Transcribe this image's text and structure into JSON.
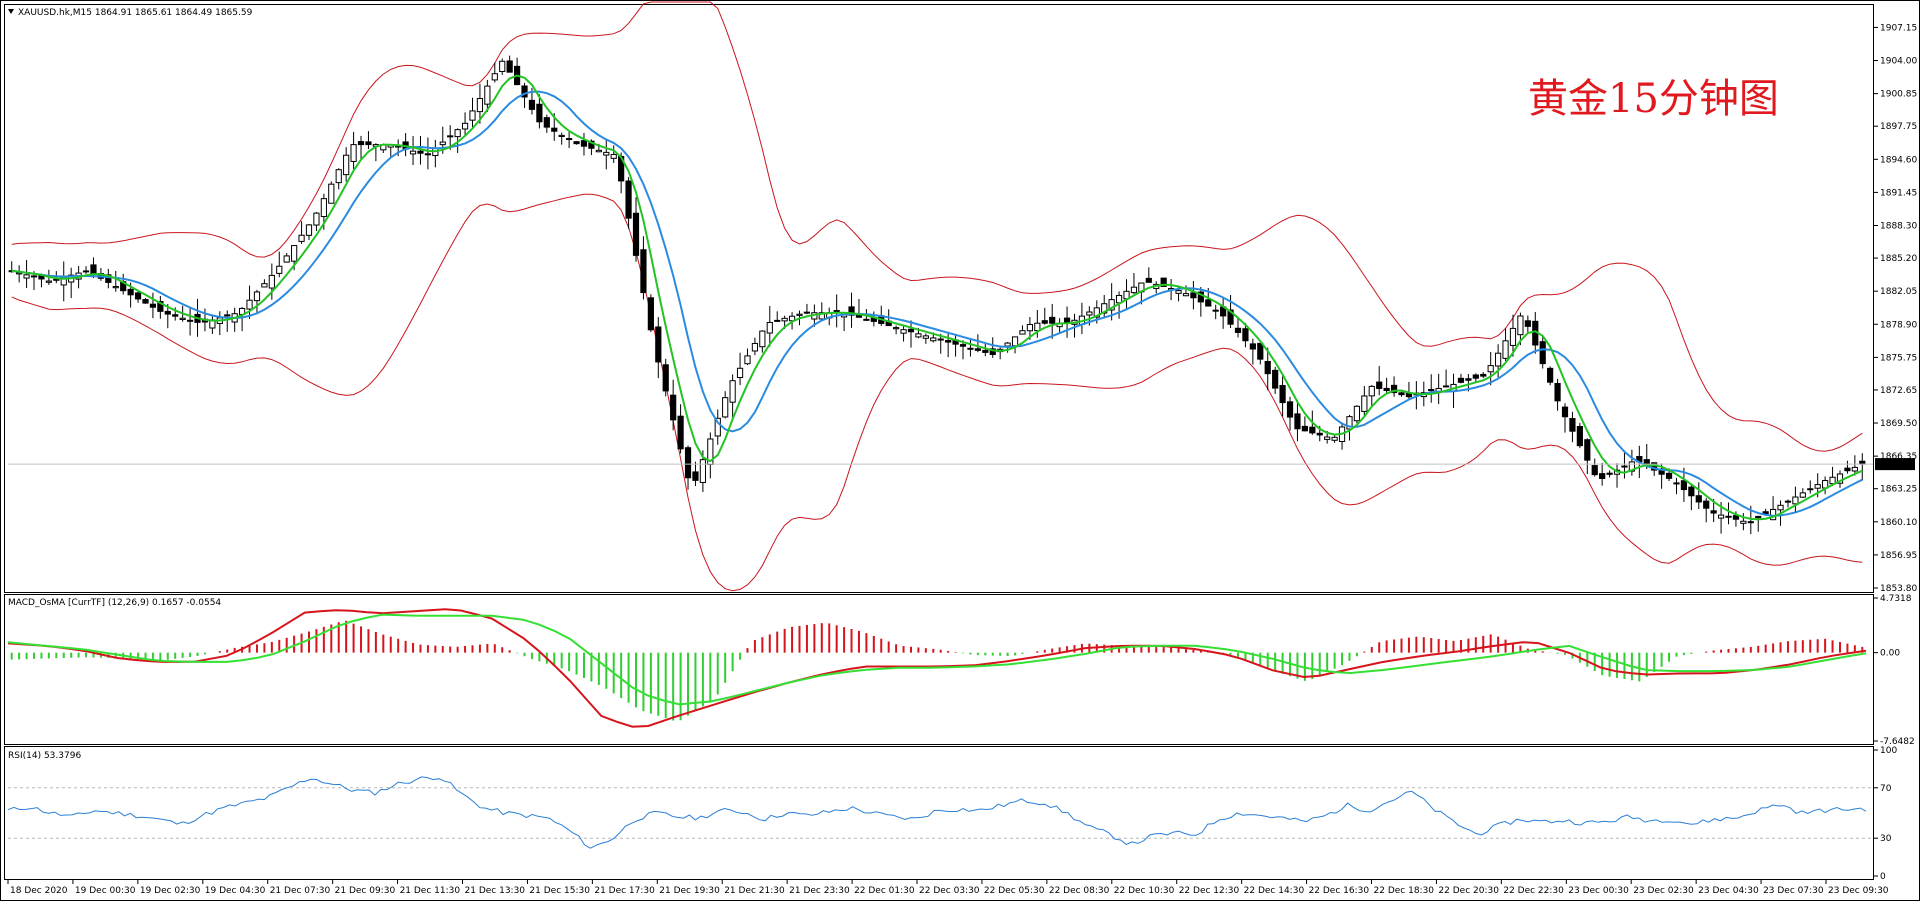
{
  "panels": {
    "price": {
      "header": "XAUUSD.hk,M15  1864.91 1865.61 1864.49 1865.59",
      "annotation": "黄金15分钟图"
    },
    "macd": {
      "header": "MACD_OsMA [CurrTF] (12,26,9) 0.1657 -0.0554"
    },
    "rsi": {
      "header": "RSI(14) 53.3796"
    }
  },
  "chart_data": [
    {
      "type": "candlestick",
      "symbol": "XAUUSD.hk",
      "timeframe": "M15",
      "ohlc_last": {
        "open": 1864.91,
        "high": 1865.61,
        "low": 1864.49,
        "close": 1865.59
      },
      "current_price_label": "1865.59",
      "ylim": [
        1853.8,
        1909.0
      ],
      "y_ticks": [
        "1907.15",
        "1904.00",
        "1900.85",
        "1897.75",
        "1894.60",
        "1891.45",
        "1888.30",
        "1885.20",
        "1882.05",
        "1878.90",
        "1875.75",
        "1872.65",
        "1869.50",
        "1866.35",
        "1863.25",
        "1860.10",
        "1856.95",
        "1853.80"
      ],
      "x_ticks": [
        "18 Dec 2020",
        "19 Dec 00:30",
        "19 Dec 02:30",
        "19 Dec 04:30",
        "21 Dec 07:30",
        "21 Dec 09:30",
        "21 Dec 11:30",
        "21 Dec 13:30",
        "21 Dec 15:30",
        "21 Dec 17:30",
        "21 Dec 19:30",
        "21 Dec 21:30",
        "21 Dec 23:30",
        "22 Dec 01:30",
        "22 Dec 03:30",
        "22 Dec 05:30",
        "22 Dec 08:30",
        "22 Dec 10:30",
        "22 Dec 12:30",
        "22 Dec 14:30",
        "22 Dec 16:30",
        "22 Dec 18:30",
        "22 Dec 20:30",
        "22 Dec 22:30",
        "23 Dec 00:30",
        "23 Dec 02:30",
        "23 Dec 04:30",
        "23 Dec 07:30",
        "23 Dec 09:30"
      ],
      "close_path": [
        1884,
        1883,
        1884,
        1882,
        1880,
        1879,
        1880,
        1884,
        1889,
        1896,
        1896,
        1895,
        1898,
        1904,
        1898,
        1896,
        1895,
        1877,
        1863,
        1873,
        1879,
        1880,
        1880,
        1879,
        1878,
        1877,
        1876,
        1879,
        1879,
        1881,
        1883,
        1882,
        1880,
        1876,
        1869,
        1868,
        1873,
        1872,
        1873,
        1874,
        1880,
        1871,
        1864,
        1866,
        1864,
        1861,
        1860,
        1862,
        1864,
        1865.59
      ],
      "colors": {
        "bollinger": "#c8161d",
        "ma_fast": "#22c322",
        "ma_slow": "#2a8be0",
        "candle": "#000000",
        "price_line": "#c0c0c0"
      }
    },
    {
      "type": "macd",
      "name": "MACD_OsMA [CurrTF]",
      "params": "(12,26,9)",
      "values": {
        "main": 0.1657,
        "signal": -0.0554
      },
      "y_ticks": [
        "4.7318",
        "0.00",
        "-7.6482"
      ],
      "ylim": [
        -7.6482,
        4.7318
      ],
      "histogram": [
        -0.6,
        -0.5,
        -0.4,
        -0.5,
        -0.7,
        -0.3,
        0.4,
        0.9,
        1.8,
        2.8,
        1.6,
        0.7,
        0.5,
        0.8,
        -0.5,
        -1.5,
        -3.0,
        -5.0,
        -6.0,
        -4.0,
        1.0,
        2.2,
        2.6,
        1.8,
        0.6,
        0.3,
        -0.2,
        -0.3,
        0.3,
        0.8,
        0.6,
        0.6,
        0.2,
        -0.2,
        -1.5,
        -2.5,
        -1.0,
        1.0,
        1.4,
        1.0,
        1.6,
        0.3,
        -0.2,
        -2.0,
        -2.5,
        -0.3,
        0.2,
        0.5,
        1.0,
        1.2,
        0.5
      ],
      "main_line": [
        0.8,
        0.6,
        0.2,
        -0.5,
        -0.8,
        -0.8,
        -0.2,
        1.5,
        3.5,
        3.7,
        3.4,
        3.6,
        3.8,
        3.0,
        1.0,
        -2.0,
        -5.6,
        -6.6,
        -5.5,
        -4.5,
        -3.5,
        -2.6,
        -1.8,
        -1.2,
        -1.2,
        -1.2,
        -1.1,
        -0.7,
        -0.2,
        0.4,
        0.6,
        0.6,
        0.3,
        -0.3,
        -1.5,
        -2.2,
        -1.5,
        -0.8,
        -0.3,
        0.1,
        0.6,
        1.0,
        0.0,
        -1.5,
        -1.9,
        -1.8,
        -1.8,
        -1.5,
        -1.0,
        -0.3,
        0.1657
      ],
      "signal_line": [
        0.9,
        0.6,
        0.3,
        -0.2,
        -0.7,
        -0.8,
        -0.8,
        -0.3,
        1.0,
        2.5,
        3.3,
        3.2,
        3.2,
        3.2,
        2.8,
        1.5,
        -1.0,
        -3.5,
        -4.5,
        -4.2,
        -3.4,
        -2.6,
        -1.9,
        -1.5,
        -1.3,
        -1.3,
        -1.2,
        -1.0,
        -0.6,
        -0.1,
        0.5,
        0.6,
        0.6,
        0.2,
        -0.5,
        -1.4,
        -1.8,
        -1.5,
        -1.1,
        -0.7,
        -0.3,
        0.2,
        0.6,
        -0.5,
        -1.5,
        -1.6,
        -1.6,
        -1.5,
        -1.2,
        -0.6,
        -0.0554
      ],
      "colors": {
        "main": "#d6141b",
        "signal": "#33e033",
        "hist_pos": "#d6141b",
        "hist_neg": "#33cc33"
      }
    },
    {
      "type": "line",
      "name": "RSI(14)",
      "value": 53.3796,
      "y_ticks": [
        "100",
        "70",
        "30",
        "0"
      ],
      "ylim": [
        0,
        100
      ],
      "levels": [
        70,
        30
      ],
      "values": [
        52,
        55,
        50,
        47,
        52,
        50,
        48,
        45,
        41,
        48,
        54,
        58,
        62,
        70,
        78,
        73,
        68,
        66,
        73,
        77,
        79,
        65,
        54,
        50,
        48,
        46,
        36,
        22,
        30,
        45,
        50,
        47,
        46,
        52,
        51,
        45,
        50,
        48,
        51,
        54,
        50,
        47,
        45,
        52,
        53,
        52,
        56,
        60,
        58,
        50,
        39,
        33,
        25,
        32,
        34,
        33,
        45,
        50,
        48,
        46,
        43,
        48,
        56,
        52,
        60,
        67,
        53,
        42,
        33,
        40,
        45,
        43,
        44,
        42,
        43,
        47,
        44,
        45,
        41,
        45,
        46,
        52,
        57,
        50,
        52,
        53,
        53.38
      ],
      "color": "#2a7fd4"
    }
  ]
}
